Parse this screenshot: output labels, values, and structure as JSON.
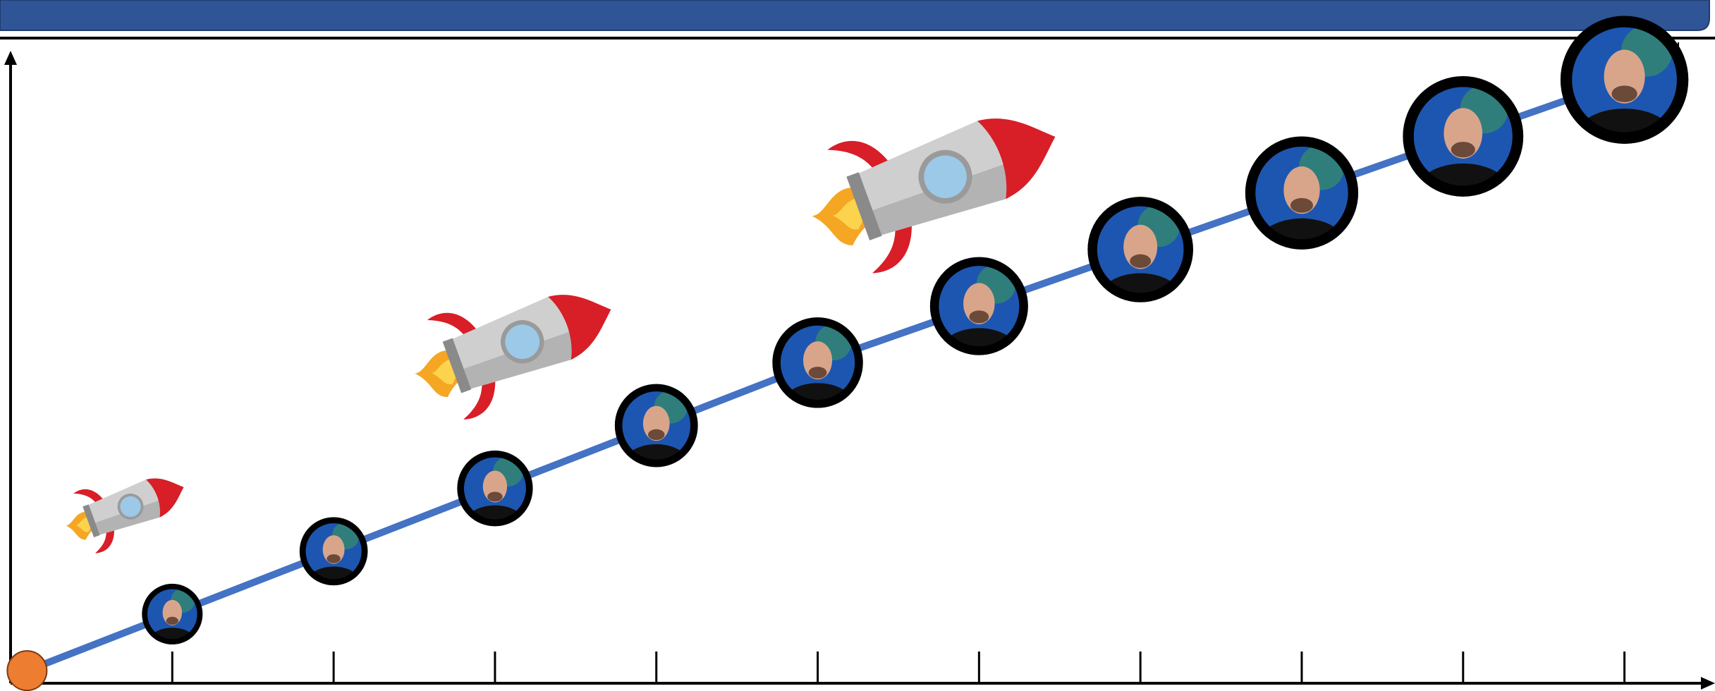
{
  "chart_data": {
    "type": "line",
    "x": [
      0.1,
      1,
      2,
      3,
      4,
      5,
      6,
      7,
      8,
      9,
      10
    ],
    "values": [
      2,
      11,
      21,
      31,
      41,
      51,
      60,
      69,
      78,
      87,
      96
    ],
    "color": "#4472c4",
    "start_color": "#ed7d31",
    "xlim": [
      0,
      10.5
    ],
    "ylim": [
      0,
      100
    ],
    "xticks": [
      1,
      2,
      3,
      4,
      5,
      6,
      7,
      8,
      9,
      10
    ]
  }
}
